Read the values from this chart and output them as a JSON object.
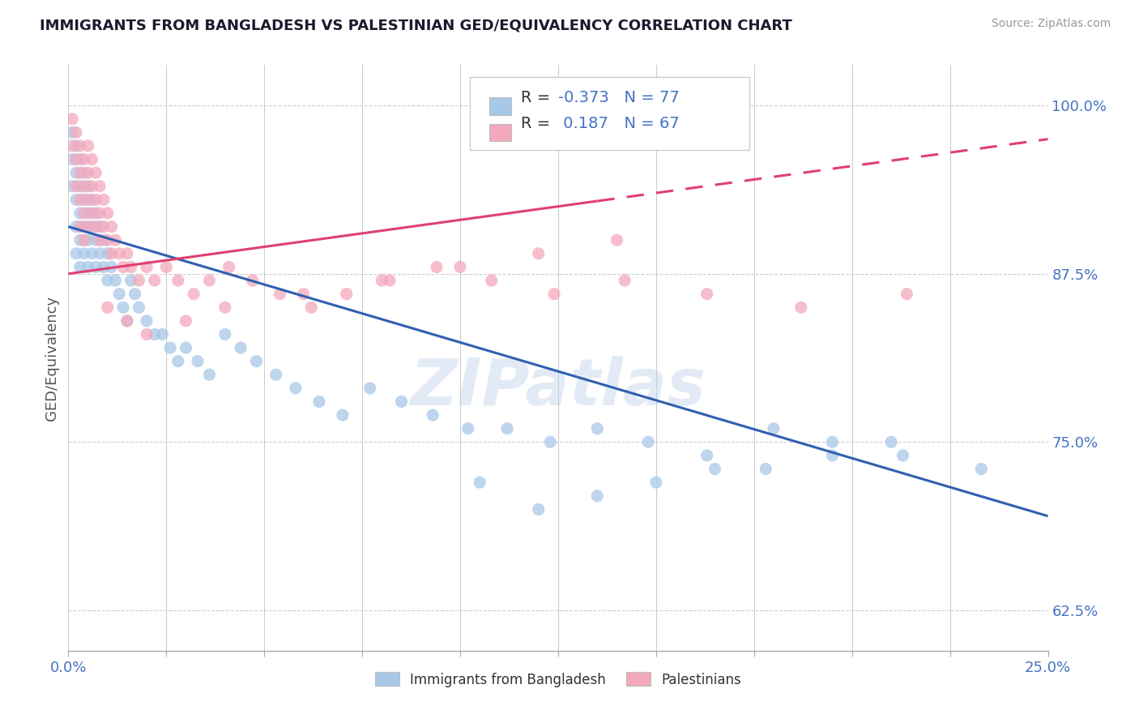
{
  "title": "IMMIGRANTS FROM BANGLADESH VS PALESTINIAN GED/EQUIVALENCY CORRELATION CHART",
  "source": "Source: ZipAtlas.com",
  "ylabel": "GED/Equivalency",
  "xlim": [
    0.0,
    0.25
  ],
  "ylim": [
    0.595,
    1.03
  ],
  "xticks": [
    0.0,
    0.025,
    0.05,
    0.075,
    0.1,
    0.125,
    0.15,
    0.175,
    0.2,
    0.225,
    0.25
  ],
  "xticklabels": [
    "0.0%",
    "",
    "",
    "",
    "",
    "",
    "",
    "",
    "",
    "",
    "25.0%"
  ],
  "yticks": [
    0.625,
    0.75,
    0.875,
    1.0
  ],
  "yticklabels": [
    "62.5%",
    "75.0%",
    "87.5%",
    "100.0%"
  ],
  "blue_scatter_color": "#a8c8e8",
  "pink_scatter_color": "#f4a8bc",
  "blue_line_color": "#3060b0",
  "pink_line_color": "#e04070",
  "r_blue": -0.373,
  "n_blue": 77,
  "r_pink": 0.187,
  "n_pink": 67,
  "legend1_label": "Immigrants from Bangladesh",
  "legend2_label": "Palestinians",
  "watermark": "ZIPatlas",
  "blue_scatter_x": [
    0.001,
    0.001,
    0.001,
    0.002,
    0.002,
    0.002,
    0.002,
    0.002,
    0.003,
    0.003,
    0.003,
    0.003,
    0.003,
    0.004,
    0.004,
    0.004,
    0.004,
    0.005,
    0.005,
    0.005,
    0.005,
    0.006,
    0.006,
    0.006,
    0.007,
    0.007,
    0.007,
    0.008,
    0.008,
    0.009,
    0.009,
    0.01,
    0.01,
    0.011,
    0.012,
    0.013,
    0.014,
    0.015,
    0.016,
    0.017,
    0.018,
    0.02,
    0.022,
    0.024,
    0.026,
    0.028,
    0.03,
    0.033,
    0.036,
    0.04,
    0.044,
    0.048,
    0.053,
    0.058,
    0.064,
    0.07,
    0.077,
    0.085,
    0.093,
    0.102,
    0.112,
    0.123,
    0.135,
    0.148,
    0.163,
    0.178,
    0.195,
    0.213,
    0.233,
    0.21,
    0.195,
    0.18,
    0.165,
    0.15,
    0.135,
    0.12,
    0.105
  ],
  "blue_scatter_y": [
    0.98,
    0.96,
    0.94,
    0.97,
    0.95,
    0.93,
    0.91,
    0.89,
    0.96,
    0.94,
    0.92,
    0.9,
    0.88,
    0.95,
    0.93,
    0.91,
    0.89,
    0.94,
    0.92,
    0.9,
    0.88,
    0.93,
    0.91,
    0.89,
    0.92,
    0.9,
    0.88,
    0.91,
    0.89,
    0.9,
    0.88,
    0.89,
    0.87,
    0.88,
    0.87,
    0.86,
    0.85,
    0.84,
    0.87,
    0.86,
    0.85,
    0.84,
    0.83,
    0.83,
    0.82,
    0.81,
    0.82,
    0.81,
    0.8,
    0.83,
    0.82,
    0.81,
    0.8,
    0.79,
    0.78,
    0.77,
    0.79,
    0.78,
    0.77,
    0.76,
    0.76,
    0.75,
    0.76,
    0.75,
    0.74,
    0.73,
    0.75,
    0.74,
    0.73,
    0.75,
    0.74,
    0.76,
    0.73,
    0.72,
    0.71,
    0.7,
    0.72
  ],
  "pink_scatter_x": [
    0.001,
    0.001,
    0.002,
    0.002,
    0.002,
    0.003,
    0.003,
    0.003,
    0.003,
    0.004,
    0.004,
    0.004,
    0.004,
    0.005,
    0.005,
    0.005,
    0.005,
    0.006,
    0.006,
    0.006,
    0.007,
    0.007,
    0.007,
    0.008,
    0.008,
    0.008,
    0.009,
    0.009,
    0.01,
    0.01,
    0.011,
    0.011,
    0.012,
    0.013,
    0.014,
    0.015,
    0.016,
    0.018,
    0.02,
    0.022,
    0.025,
    0.028,
    0.032,
    0.036,
    0.041,
    0.047,
    0.054,
    0.062,
    0.071,
    0.082,
    0.094,
    0.108,
    0.124,
    0.142,
    0.163,
    0.187,
    0.214,
    0.14,
    0.12,
    0.1,
    0.08,
    0.06,
    0.04,
    0.03,
    0.02,
    0.015,
    0.01
  ],
  "pink_scatter_y": [
    0.99,
    0.97,
    0.98,
    0.96,
    0.94,
    0.97,
    0.95,
    0.93,
    0.91,
    0.96,
    0.94,
    0.92,
    0.9,
    0.97,
    0.95,
    0.93,
    0.91,
    0.96,
    0.94,
    0.92,
    0.95,
    0.93,
    0.91,
    0.94,
    0.92,
    0.9,
    0.93,
    0.91,
    0.92,
    0.9,
    0.91,
    0.89,
    0.9,
    0.89,
    0.88,
    0.89,
    0.88,
    0.87,
    0.88,
    0.87,
    0.88,
    0.87,
    0.86,
    0.87,
    0.88,
    0.87,
    0.86,
    0.85,
    0.86,
    0.87,
    0.88,
    0.87,
    0.86,
    0.87,
    0.86,
    0.85,
    0.86,
    0.9,
    0.89,
    0.88,
    0.87,
    0.86,
    0.85,
    0.84,
    0.83,
    0.84,
    0.85
  ]
}
